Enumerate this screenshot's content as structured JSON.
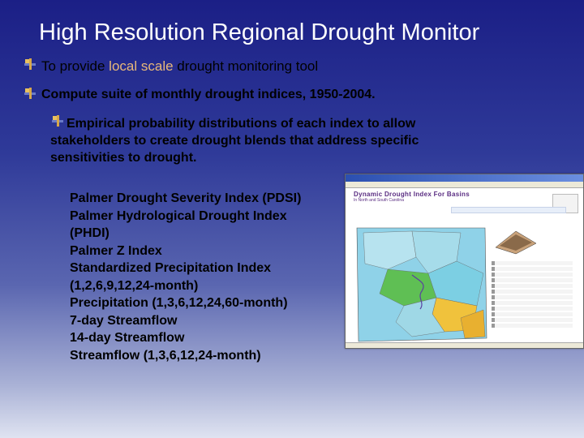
{
  "slide": {
    "title": "High Resolution Regional Drought Monitor",
    "bullet1": {
      "pre": "To provide ",
      "highlight": "local scale",
      "post": " drought monitoring tool"
    },
    "bullet2": "Compute suite of monthly drought indices, 1950-2004.",
    "bullet3": {
      "line1": "Empirical probability distributions of each index to allow",
      "line2": "stakeholders to create drought blends that address specific",
      "line3": "sensitivities to drought."
    },
    "indices": [
      "Palmer Drought Severity Index (PDSI)",
      "Palmer Hydrological Drought Index",
      "(PHDI)",
      "Palmer Z Index",
      "Standardized Precipitation Index",
      "(1,2,6,9,12,24-month)",
      "Precipitation (1,3,6,12,24,60-month)",
      "7-day Streamflow",
      "14-day Streamflow",
      "Streamflow (1,3,6,12,24-month)"
    ]
  },
  "screenshot": {
    "heading": "Dynamic Drought Index For Basins",
    "subheading": "In North and South Carolina"
  },
  "colors": {
    "title": "#ffffff",
    "highlight": "#e8b87a",
    "background_top": "#1b1f86",
    "background_bottom": "#dfe3f1"
  }
}
